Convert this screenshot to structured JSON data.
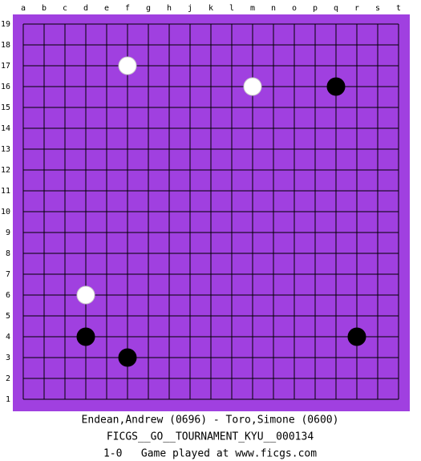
{
  "board": {
    "columns": [
      "a",
      "b",
      "c",
      "d",
      "e",
      "f",
      "g",
      "h",
      "j",
      "k",
      "l",
      "m",
      "n",
      "o",
      "p",
      "q",
      "r",
      "s",
      "t"
    ],
    "rows": [
      19,
      18,
      17,
      16,
      15,
      14,
      13,
      12,
      11,
      10,
      9,
      8,
      7,
      6,
      5,
      4,
      3,
      2,
      1
    ],
    "stones": [
      {
        "color": "white",
        "col": "f",
        "row": 17
      },
      {
        "color": "white",
        "col": "m",
        "row": 16
      },
      {
        "color": "black",
        "col": "q",
        "row": 16
      },
      {
        "color": "white",
        "col": "d",
        "row": 6
      },
      {
        "color": "black",
        "col": "d",
        "row": 4
      },
      {
        "color": "black",
        "col": "r",
        "row": 4
      },
      {
        "color": "black",
        "col": "f",
        "row": 3
      }
    ]
  },
  "footer": {
    "players": "Endean,Andrew (0696) - Toro,Simone (0600)",
    "event": "FICGS__GO__TOURNAMENT_KYU__000134",
    "result": "1-0   Game played at www.ficgs.com"
  }
}
